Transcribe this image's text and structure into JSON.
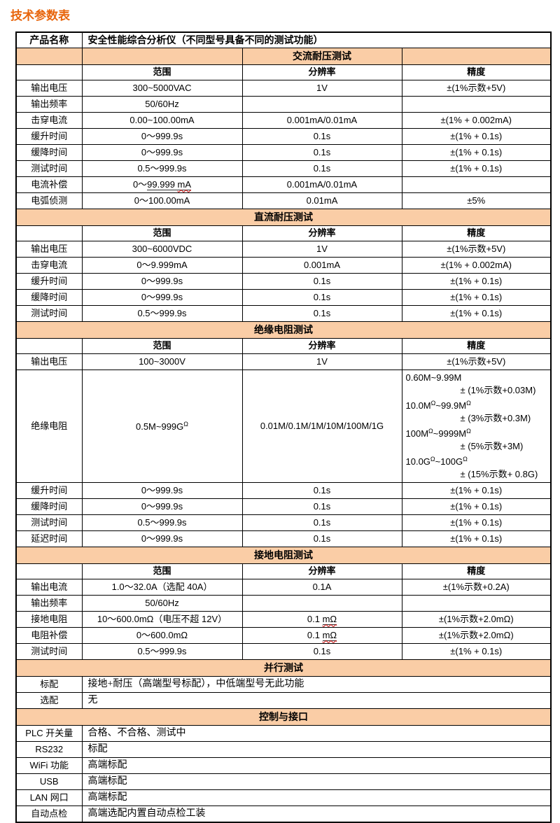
{
  "page": {
    "title": "技术参数表"
  },
  "colors": {
    "section_bg": "#FACDA6",
    "title_text": "#E8650C",
    "spellcheck_wavy": "#CC0000"
  },
  "table": {
    "product": {
      "label": "产品名称",
      "value": "安全性能综合分析仪（不同型号具备不同的测试功能）"
    },
    "column_headers": [
      "范围",
      "分辨率",
      "精度"
    ],
    "sections": [
      {
        "title": "交流耐压测试",
        "title_layout": "grid",
        "has_headers": true,
        "rows": [
          {
            "label": "输出电压",
            "range": "300~5000VAC",
            "resolution": "1V",
            "accuracy": "±(1%示数+5V)"
          },
          {
            "label": "输出频率",
            "range": "50/60Hz",
            "resolution": "",
            "accuracy": ""
          },
          {
            "label": "击穿电流",
            "range": "0.00~100.00mA",
            "resolution": "0.001mA/0.01mA",
            "accuracy": "±(1% + 0.002mA)"
          },
          {
            "label": "缓升时间",
            "range": "0～999.9s",
            "resolution": "0.1s",
            "accuracy": "±(1% + 0.1s)"
          },
          {
            "label": "缓降时间",
            "range": "0～999.9s",
            "resolution": "0.1s",
            "accuracy": "±(1% + 0.1s)"
          },
          {
            "label": "测试时间",
            "range": "0.5～999.9s",
            "resolution": "0.1s",
            "accuracy": "±(1% + 0.1s)"
          },
          {
            "label": "电流补偿",
            "range": {
              "segs": [
                {
                  "text": "0～"
                },
                {
                  "text": "99.999 ",
                  "u": true
                },
                {
                  "text": "mA",
                  "u": true,
                  "wavy": true
                }
              ]
            },
            "resolution": "0.001mA/0.01mA",
            "accuracy": ""
          },
          {
            "label": "电弧侦测",
            "range": "0～100.00mA",
            "resolution": "0.01mA",
            "accuracy": "±5%"
          }
        ]
      },
      {
        "title": "直流耐压测试",
        "has_headers": true,
        "rows": [
          {
            "label": "输出电压",
            "range": "300~6000VDC",
            "resolution": "1V",
            "accuracy": "±(1%示数+5V)"
          },
          {
            "label": "击穿电流",
            "range": "0～9.999mA",
            "resolution": "0.001mA",
            "accuracy": "±(1% + 0.002mA)"
          },
          {
            "label": "缓升时间",
            "range": "0～999.9s",
            "resolution": "0.1s",
            "accuracy": "±(1% + 0.1s)"
          },
          {
            "label": "缓降时间",
            "range": "0～999.9s",
            "resolution": "0.1s",
            "accuracy": "±(1% + 0.1s)"
          },
          {
            "label": "测试时间",
            "range": "0.5～999.9s",
            "resolution": "0.1s",
            "accuracy": "±(1% + 0.1s)"
          }
        ]
      },
      {
        "title": "绝缘电阻测试",
        "has_headers": true,
        "rows": [
          {
            "label": "输出电压",
            "range": "100~3000V",
            "resolution": "1V",
            "accuracy": "±(1%示数+5V)"
          },
          {
            "label": "绝缘电阻",
            "range": {
              "segs": [
                {
                  "text": "0.5M~999G"
                },
                {
                  "text": "Ω",
                  "sup": true
                }
              ]
            },
            "resolution": "0.01M/0.1M/1M/10M/100M/1G",
            "accuracy": {
              "lines": [
                {
                  "segs": [
                    {
                      "text": "0.60M~9.99M"
                    }
                  ]
                },
                {
                  "segs": [
                    {
                      "text": "± (1%示数+0.03M)"
                    }
                  ],
                  "indent": true
                },
                {
                  "segs": [
                    {
                      "text": "10.0M"
                    },
                    {
                      "text": "Ω",
                      "sup": true
                    },
                    {
                      "text": "~99.9M"
                    },
                    {
                      "text": "Ω",
                      "sup": true
                    }
                  ]
                },
                {
                  "segs": [
                    {
                      "text": "± (3%示数+0.3M)"
                    }
                  ],
                  "indent": true
                },
                {
                  "segs": [
                    {
                      "text": "100M"
                    },
                    {
                      "text": "Ω",
                      "sup": true
                    },
                    {
                      "text": "~9999M"
                    },
                    {
                      "text": "Ω",
                      "sup": true
                    }
                  ]
                },
                {
                  "segs": [
                    {
                      "text": "± (5%示数+3M)"
                    }
                  ],
                  "indent": true
                },
                {
                  "segs": [
                    {
                      "text": "10.0G"
                    },
                    {
                      "text": "Ω",
                      "sup": true
                    },
                    {
                      "text": "~100G"
                    },
                    {
                      "text": "Ω",
                      "sup": true
                    }
                  ]
                },
                {
                  "segs": [
                    {
                      "text": "± (15%示数+ 0.8G)"
                    }
                  ],
                  "indent": true
                }
              ]
            }
          },
          {
            "label": "缓升时间",
            "range": "0～999.9s",
            "resolution": "0.1s",
            "accuracy": "±(1% + 0.1s)"
          },
          {
            "label": "缓降时间",
            "range": "0～999.9s",
            "resolution": "0.1s",
            "accuracy": "±(1% + 0.1s)"
          },
          {
            "label": "测试时间",
            "range": "0.5～999.9s",
            "resolution": "0.1s",
            "accuracy": "±(1% + 0.1s)"
          },
          {
            "label": "延迟时间",
            "range": "0～999.9s",
            "resolution": "0.1s",
            "accuracy": "±(1% + 0.1s)"
          }
        ]
      },
      {
        "title": "接地电阻测试",
        "has_headers": true,
        "rows": [
          {
            "label": "输出电流",
            "range": "1.0～32.0A（选配 40A）",
            "resolution": "0.1A",
            "accuracy": "±(1%示数+0.2A)"
          },
          {
            "label": "输出频率",
            "range": "50/60Hz",
            "resolution": "",
            "accuracy": ""
          },
          {
            "label": "接地电阻",
            "range": "10～600.0mΩ（电压不超 12V）",
            "resolution": {
              "segs": [
                {
                  "text": "0.1 "
                },
                {
                  "text": "mΩ",
                  "u": true,
                  "wavy": true
                }
              ]
            },
            "accuracy": "±(1%示数+2.0mΩ)"
          },
          {
            "label": "电阻补偿",
            "range": "0～600.0mΩ",
            "resolution": {
              "segs": [
                {
                  "text": "0.1 "
                },
                {
                  "text": "mΩ",
                  "u": true,
                  "wavy": true
                }
              ]
            },
            "accuracy": "±(1%示数+2.0mΩ)"
          },
          {
            "label": "测试时间",
            "range": "0.5～999.9s",
            "resolution": "0.1s",
            "accuracy": "±(1% + 0.1s)"
          }
        ]
      },
      {
        "title": "并行测试",
        "layout": "kv",
        "rows": [
          {
            "label": "标配",
            "value": "接地+耐压（高端型号标配），中低端型号无此功能"
          },
          {
            "label": "选配",
            "value": "无"
          }
        ]
      },
      {
        "title": "控制与接口",
        "layout": "kv",
        "rows": [
          {
            "label": "PLC 开关量",
            "value": "合格、不合格、测试中"
          },
          {
            "label": "RS232",
            "value": "标配"
          },
          {
            "label": "WiFi 功能",
            "value": "高端标配"
          },
          {
            "label": "USB",
            "value": "高端标配"
          },
          {
            "label": "LAN 网口",
            "value": "高端标配"
          },
          {
            "label": "自动点检",
            "value": "高端选配内置自动点检工装"
          }
        ]
      }
    ]
  }
}
